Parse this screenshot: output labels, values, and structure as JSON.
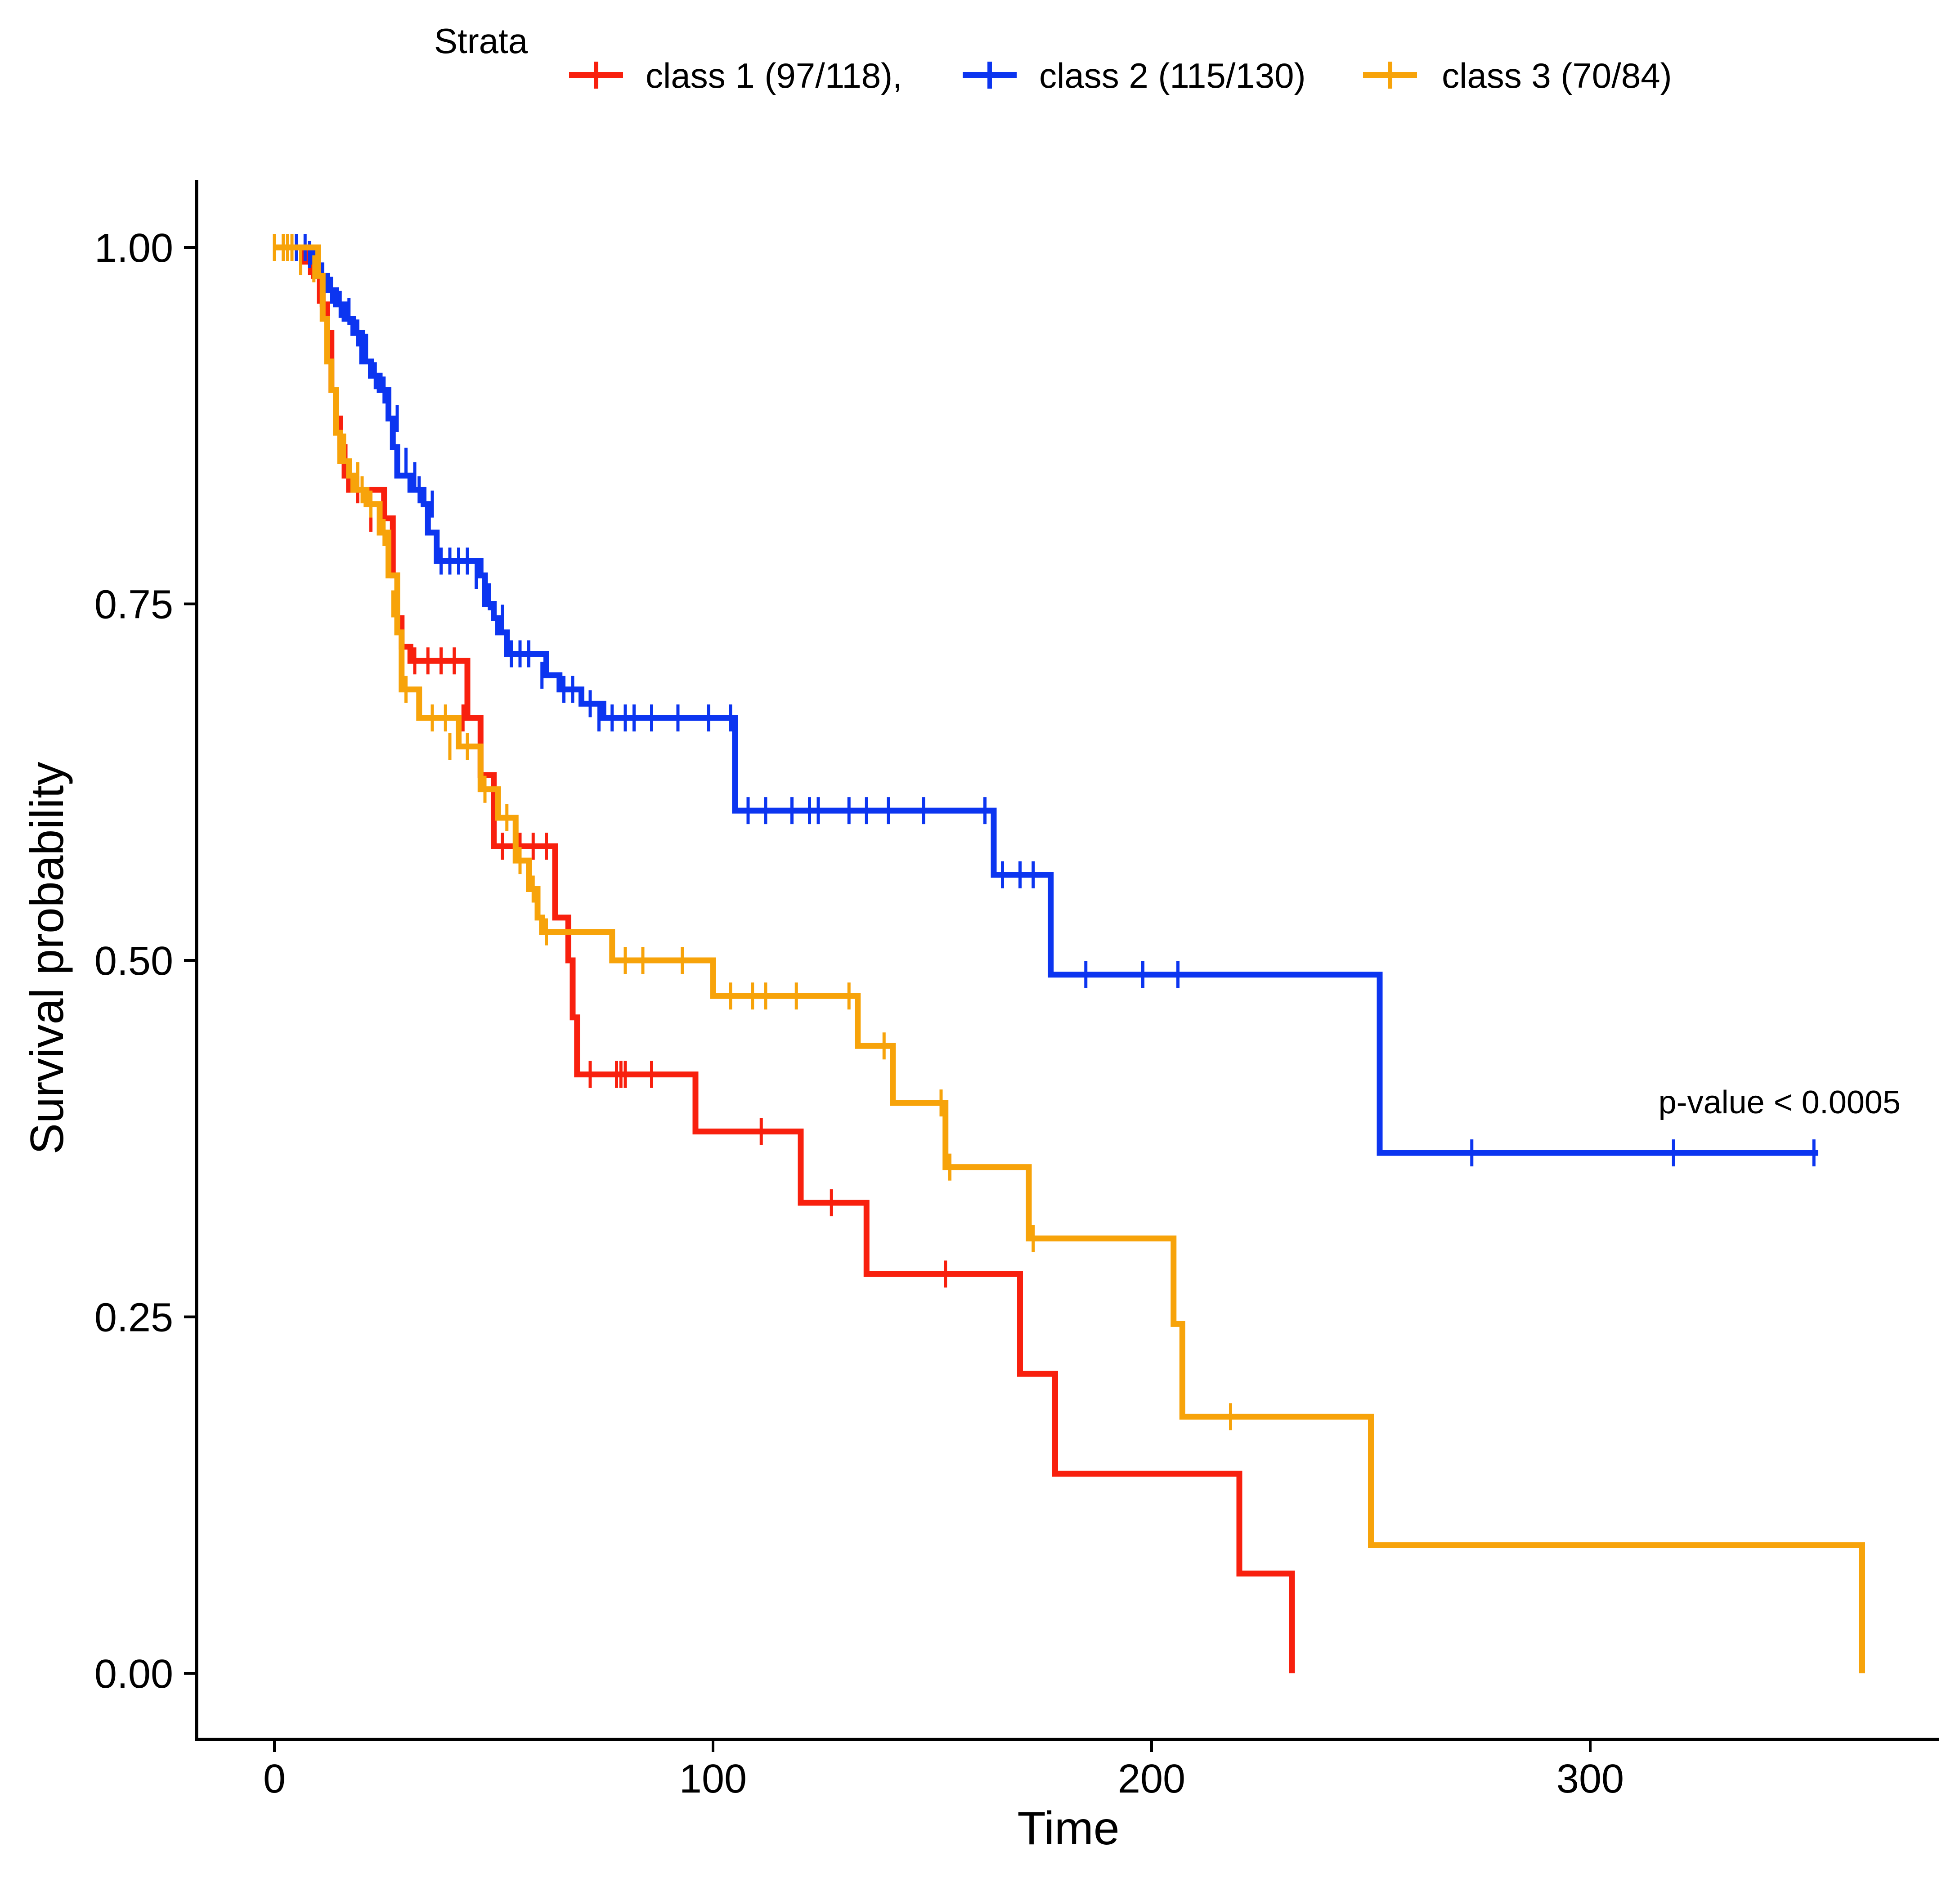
{
  "chart_data": {
    "type": "line",
    "subtype": "kaplan-meier-step",
    "title": "",
    "xlabel": "Time",
    "ylabel": "Survival probability",
    "xlim": [
      -18,
      375
    ],
    "ylim": [
      -0.05,
      1.05
    ],
    "xticks": [
      0,
      100,
      200,
      300
    ],
    "yticks": [
      0.0,
      0.25,
      0.5,
      0.75,
      1.0
    ],
    "xtick_labels": [
      "0",
      "100",
      "200",
      "300"
    ],
    "ytick_labels": [
      "0.00",
      "0.25",
      "0.50",
      "0.75",
      "1.00"
    ],
    "grid": false,
    "legend": {
      "title": "Strata",
      "placement": "top",
      "entries": [
        "class 1 (97/118),",
        "class 2 (115/130)",
        "class 3 (70/84)"
      ]
    },
    "annotation": "p-value < 0.0005",
    "series": [
      {
        "name": "class 1 (97/118),",
        "color": "#f8200e",
        "steps": [
          [
            0,
            1.0
          ],
          [
            7,
            0.99
          ],
          [
            9,
            0.98
          ],
          [
            11,
            0.96
          ],
          [
            12,
            0.94
          ],
          [
            13,
            0.9
          ],
          [
            14,
            0.88
          ],
          [
            15,
            0.86
          ],
          [
            16,
            0.84
          ],
          [
            17,
            0.83
          ],
          [
            25,
            0.81
          ],
          [
            27,
            0.77
          ],
          [
            28,
            0.74
          ],
          [
            29,
            0.72
          ],
          [
            31,
            0.71
          ],
          [
            44,
            0.67
          ],
          [
            47,
            0.63
          ],
          [
            50,
            0.58
          ],
          [
            64,
            0.53
          ],
          [
            67,
            0.5
          ],
          [
            68,
            0.46
          ],
          [
            69,
            0.42
          ],
          [
            96,
            0.38
          ],
          [
            120,
            0.33
          ],
          [
            135,
            0.28
          ],
          [
            170,
            0.21
          ],
          [
            178,
            0.14
          ],
          [
            220,
            0.07
          ],
          [
            232,
            0.0
          ]
        ],
        "end": 232,
        "censors": [
          [
            5,
            1.0
          ],
          [
            8,
            0.99
          ],
          [
            10,
            0.97
          ],
          [
            13,
            0.92
          ],
          [
            15,
            0.87
          ],
          [
            16,
            0.85
          ],
          [
            19,
            0.83
          ],
          [
            22,
            0.81
          ],
          [
            26,
            0.78
          ],
          [
            32,
            0.71
          ],
          [
            35,
            0.71
          ],
          [
            38,
            0.71
          ],
          [
            41,
            0.71
          ],
          [
            43,
            0.67
          ],
          [
            48,
            0.62
          ],
          [
            52,
            0.58
          ],
          [
            56,
            0.58
          ],
          [
            59,
            0.58
          ],
          [
            62,
            0.58
          ],
          [
            72,
            0.42
          ],
          [
            78,
            0.42
          ],
          [
            79,
            0.42
          ],
          [
            80,
            0.42
          ],
          [
            86,
            0.42
          ],
          [
            111,
            0.38
          ],
          [
            127,
            0.33
          ],
          [
            153,
            0.28
          ]
        ]
      },
      {
        "name": "class 2 (115/130)",
        "color": "#0c35f0",
        "steps": [
          [
            0,
            1.0
          ],
          [
            9,
            0.99
          ],
          [
            10,
            0.98
          ],
          [
            12,
            0.97
          ],
          [
            14,
            0.96
          ],
          [
            16,
            0.95
          ],
          [
            18,
            0.94
          ],
          [
            20,
            0.92
          ],
          [
            22,
            0.91
          ],
          [
            24,
            0.9
          ],
          [
            26,
            0.88
          ],
          [
            27,
            0.86
          ],
          [
            28,
            0.84
          ],
          [
            31,
            0.83
          ],
          [
            34,
            0.82
          ],
          [
            35,
            0.8
          ],
          [
            37,
            0.78
          ],
          [
            47,
            0.77
          ],
          [
            48,
            0.75
          ],
          [
            50,
            0.74
          ],
          [
            51,
            0.73
          ],
          [
            53,
            0.715
          ],
          [
            62,
            0.7
          ],
          [
            65,
            0.69
          ],
          [
            70,
            0.68
          ],
          [
            75,
            0.67
          ],
          [
            105,
            0.605
          ],
          [
            164,
            0.56
          ],
          [
            177,
            0.49
          ],
          [
            252,
            0.365
          ]
        ],
        "end": 352,
        "censors": [
          [
            5,
            1.0
          ],
          [
            7,
            1.0
          ],
          [
            8,
            0.995
          ],
          [
            11,
            0.98
          ],
          [
            13,
            0.97
          ],
          [
            15,
            0.96
          ],
          [
            17,
            0.955
          ],
          [
            19,
            0.94
          ],
          [
            21,
            0.93
          ],
          [
            23,
            0.91
          ],
          [
            25,
            0.9
          ],
          [
            28,
            0.88
          ],
          [
            30,
            0.85
          ],
          [
            32,
            0.84
          ],
          [
            33,
            0.83
          ],
          [
            36,
            0.82
          ],
          [
            38,
            0.78
          ],
          [
            40,
            0.78
          ],
          [
            42,
            0.78
          ],
          [
            44,
            0.78
          ],
          [
            46,
            0.77
          ],
          [
            49,
            0.755
          ],
          [
            52,
            0.74
          ],
          [
            54,
            0.715
          ],
          [
            56,
            0.715
          ],
          [
            58,
            0.715
          ],
          [
            61,
            0.7
          ],
          [
            66,
            0.69
          ],
          [
            68,
            0.69
          ],
          [
            72,
            0.68
          ],
          [
            74,
            0.67
          ],
          [
            77,
            0.67
          ],
          [
            80,
            0.67
          ],
          [
            82,
            0.67
          ],
          [
            86,
            0.67
          ],
          [
            92,
            0.67
          ],
          [
            99,
            0.67
          ],
          [
            104,
            0.67
          ],
          [
            108,
            0.605
          ],
          [
            112,
            0.605
          ],
          [
            118,
            0.605
          ],
          [
            122,
            0.605
          ],
          [
            124,
            0.605
          ],
          [
            131,
            0.605
          ],
          [
            135,
            0.605
          ],
          [
            140,
            0.605
          ],
          [
            148,
            0.605
          ],
          [
            162,
            0.605
          ],
          [
            166,
            0.56
          ],
          [
            170,
            0.56
          ],
          [
            173,
            0.56
          ],
          [
            185,
            0.49
          ],
          [
            198,
            0.49
          ],
          [
            206,
            0.49
          ],
          [
            273,
            0.365
          ],
          [
            319,
            0.365
          ],
          [
            351,
            0.365
          ]
        ]
      },
      {
        "name": "class 3 (70/84)",
        "color": "#f7a30a",
        "steps": [
          [
            0,
            1.0
          ],
          [
            10,
            0.98
          ],
          [
            11,
            0.95
          ],
          [
            12,
            0.92
          ],
          [
            13,
            0.9
          ],
          [
            14,
            0.87
          ],
          [
            15,
            0.85
          ],
          [
            17,
            0.84
          ],
          [
            18,
            0.83
          ],
          [
            21,
            0.82
          ],
          [
            24,
            0.8
          ],
          [
            26,
            0.77
          ],
          [
            28,
            0.73
          ],
          [
            29,
            0.69
          ],
          [
            33,
            0.67
          ],
          [
            42,
            0.65
          ],
          [
            47,
            0.62
          ],
          [
            51,
            0.6
          ],
          [
            55,
            0.57
          ],
          [
            58,
            0.55
          ],
          [
            60,
            0.53
          ],
          [
            61,
            0.52
          ],
          [
            77,
            0.5
          ],
          [
            100,
            0.475
          ],
          [
            133,
            0.44
          ],
          [
            141,
            0.4
          ],
          [
            153,
            0.355
          ],
          [
            172,
            0.305
          ],
          [
            205,
            0.245
          ],
          [
            207,
            0.18
          ],
          [
            250,
            0.09
          ],
          [
            362,
            0.0
          ]
        ],
        "end": 362,
        "censors": [
          [
            0,
            1.0
          ],
          [
            2,
            1.0
          ],
          [
            3,
            1.0
          ],
          [
            4,
            1.0
          ],
          [
            6,
            0.99
          ],
          [
            9,
            0.985
          ],
          [
            12,
            0.93
          ],
          [
            14,
            0.88
          ],
          [
            16,
            0.86
          ],
          [
            19,
            0.84
          ],
          [
            20,
            0.83
          ],
          [
            22,
            0.82
          ],
          [
            25,
            0.8
          ],
          [
            27,
            0.75
          ],
          [
            30,
            0.69
          ],
          [
            36,
            0.67
          ],
          [
            39,
            0.67
          ],
          [
            40,
            0.65
          ],
          [
            44,
            0.65
          ],
          [
            48,
            0.62
          ],
          [
            53,
            0.6
          ],
          [
            56,
            0.57
          ],
          [
            59,
            0.55
          ],
          [
            62,
            0.52
          ],
          [
            80,
            0.5
          ],
          [
            84,
            0.5
          ],
          [
            93,
            0.5
          ],
          [
            104,
            0.475
          ],
          [
            109,
            0.475
          ],
          [
            112,
            0.475
          ],
          [
            119,
            0.475
          ],
          [
            131,
            0.475
          ],
          [
            139,
            0.44
          ],
          [
            152,
            0.4
          ],
          [
            154,
            0.355
          ],
          [
            173,
            0.305
          ],
          [
            218,
            0.18
          ]
        ]
      }
    ]
  }
}
